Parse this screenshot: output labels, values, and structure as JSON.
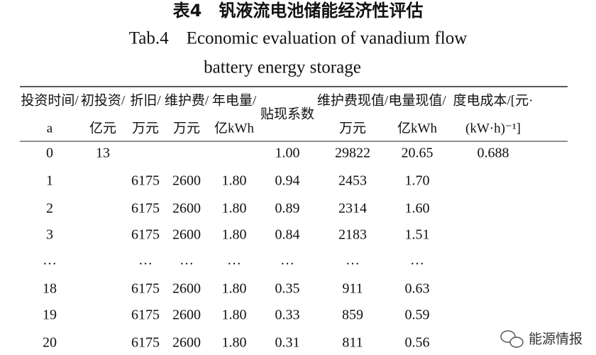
{
  "header": {
    "title": "表4　钒液流电池储能经济性评估",
    "subtitle_lines": [
      "Tab.4　Economic evaluation of vanadium flow",
      "battery energy storage"
    ]
  },
  "table": {
    "columns": [
      [
        "投资时间/",
        "a"
      ],
      [
        "初投资/",
        "亿元"
      ],
      [
        "折旧/",
        "万元"
      ],
      [
        "维护费/",
        "万元"
      ],
      [
        "年电量/",
        "亿kWh"
      ],
      [
        "贴现系数"
      ],
      [
        "维护费现值/",
        "万元"
      ],
      [
        "电量现值/",
        "亿kWh"
      ],
      [
        "度电成本/[元·",
        "(kW·h)⁻¹]"
      ]
    ],
    "rows": [
      [
        "0",
        "13",
        null,
        null,
        null,
        "1.00",
        "29822",
        "20.65",
        "0.688"
      ],
      [
        "1",
        null,
        "6175",
        "2600",
        "1.80",
        "0.94",
        "2453",
        "1.70",
        null
      ],
      [
        "2",
        null,
        "6175",
        "2600",
        "1.80",
        "0.89",
        "2314",
        "1.60",
        null
      ],
      [
        "3",
        null,
        "6175",
        "2600",
        "1.80",
        "0.84",
        "2183",
        "1.51",
        null
      ],
      [
        "…",
        null,
        "…",
        "…",
        "…",
        "…",
        "…",
        "…",
        null
      ],
      [
        "18",
        null,
        "6175",
        "2600",
        "1.80",
        "0.35",
        "911",
        "0.63",
        null
      ],
      [
        "19",
        null,
        "6175",
        "2600",
        "1.80",
        "0.33",
        "859",
        "0.59",
        null
      ],
      [
        "20",
        null,
        "6175",
        "2600",
        "1.80",
        "0.31",
        "811",
        "0.56",
        null
      ]
    ]
  },
  "watermark": "能源情报"
}
